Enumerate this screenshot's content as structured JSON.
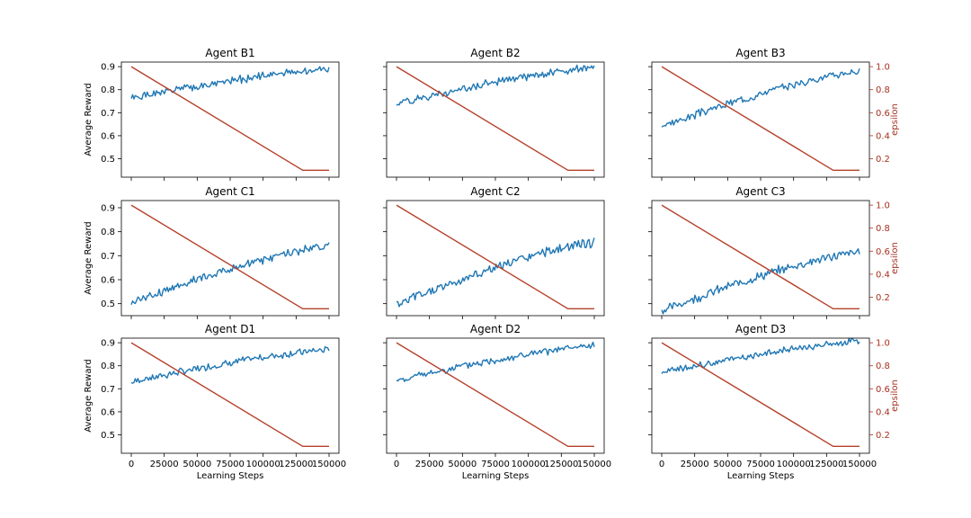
{
  "figure": {
    "background": "#ffffff"
  },
  "colors": {
    "reward": "#1f77b4",
    "epsilon": "#b5412a",
    "epsilon_axis": "#a5311f",
    "axis": "#000000"
  },
  "labels": {
    "xlabel": "Learning Steps",
    "ylabel_left": "Average Reward",
    "ylabel_right": "epsilon"
  },
  "chart_data": [
    {
      "type": "line",
      "title": "Agent B1",
      "row": 0,
      "col": 0,
      "xlim": [
        -7500,
        157500
      ],
      "ylim": [
        0.42,
        0.92
      ],
      "y2lim": [
        0.04,
        1.04
      ],
      "xticks": [
        0,
        25000,
        50000,
        75000,
        100000,
        125000,
        150000
      ],
      "yticks": [
        0.5,
        0.6,
        0.7,
        0.8,
        0.9
      ],
      "y2ticks": [
        0.2,
        0.4,
        0.6,
        0.8,
        1.0
      ],
      "yticklabels": [
        "0.5",
        "0.6",
        "0.7",
        "0.8",
        "0.9"
      ],
      "y2ticklabels": [
        "0.2",
        "0.4",
        "0.6",
        "0.8",
        "1.0"
      ],
      "xticklabels": [
        "0",
        "25000",
        "50000",
        "75000",
        "100000",
        "125000",
        "150000"
      ],
      "reward_start": 0.762,
      "reward_end": 0.89,
      "reward_noise": 0.013,
      "reward_seed": 1,
      "epsilon": {
        "x": [
          0,
          130000,
          150000
        ],
        "y": [
          1.0,
          0.1,
          0.1
        ]
      },
      "show_xticklabels": false,
      "show_yticklabels": true,
      "show_y2ticklabels": false,
      "show_xlabel": false,
      "show_ylabel": true,
      "show_y2label": false
    },
    {
      "type": "line",
      "title": "Agent B2",
      "row": 0,
      "col": 1,
      "xlim": [
        -7500,
        157500
      ],
      "ylim": [
        0.42,
        0.92
      ],
      "y2lim": [
        0.04,
        1.04
      ],
      "xticks": [
        0,
        25000,
        50000,
        75000,
        100000,
        125000,
        150000
      ],
      "yticks": [
        0.5,
        0.6,
        0.7,
        0.8,
        0.9
      ],
      "y2ticks": [
        0.2,
        0.4,
        0.6,
        0.8,
        1.0
      ],
      "yticklabels": [
        "0.5",
        "0.6",
        "0.7",
        "0.8",
        "0.9"
      ],
      "y2ticklabels": [
        "0.2",
        "0.4",
        "0.6",
        "0.8",
        "1.0"
      ],
      "xticklabels": [
        "0",
        "25000",
        "50000",
        "75000",
        "100000",
        "125000",
        "150000"
      ],
      "reward_start": 0.74,
      "reward_end": 0.895,
      "reward_noise": 0.013,
      "reward_seed": 2,
      "epsilon": {
        "x": [
          0,
          130000,
          150000
        ],
        "y": [
          1.0,
          0.1,
          0.1
        ]
      },
      "show_xticklabels": false,
      "show_yticklabels": false,
      "show_y2ticklabels": false,
      "show_xlabel": false,
      "show_ylabel": false,
      "show_y2label": false
    },
    {
      "type": "line",
      "title": "Agent B3",
      "row": 0,
      "col": 2,
      "xlim": [
        -7500,
        157500
      ],
      "ylim": [
        0.42,
        0.92
      ],
      "y2lim": [
        0.04,
        1.04
      ],
      "xticks": [
        0,
        25000,
        50000,
        75000,
        100000,
        125000,
        150000
      ],
      "yticks": [
        0.5,
        0.6,
        0.7,
        0.8,
        0.9
      ],
      "y2ticks": [
        0.2,
        0.4,
        0.6,
        0.8,
        1.0
      ],
      "yticklabels": [
        "0.5",
        "0.6",
        "0.7",
        "0.8",
        "0.9"
      ],
      "y2ticklabels": [
        "0.2",
        "0.4",
        "0.6",
        "0.8",
        "1.0"
      ],
      "xticklabels": [
        "0",
        "25000",
        "50000",
        "75000",
        "100000",
        "125000",
        "150000"
      ],
      "reward_start": 0.64,
      "reward_end": 0.88,
      "reward_noise": 0.013,
      "reward_seed": 3,
      "epsilon": {
        "x": [
          0,
          130000,
          150000
        ],
        "y": [
          1.0,
          0.1,
          0.1
        ]
      },
      "show_xticklabels": false,
      "show_yticklabels": false,
      "show_y2ticklabels": true,
      "show_xlabel": false,
      "show_ylabel": false,
      "show_y2label": true
    },
    {
      "type": "line",
      "title": "Agent C1",
      "row": 1,
      "col": 0,
      "xlim": [
        -7500,
        157500
      ],
      "ylim": [
        0.45,
        0.93
      ],
      "y2lim": [
        0.04,
        1.04
      ],
      "xticks": [
        0,
        25000,
        50000,
        75000,
        100000,
        125000,
        150000
      ],
      "yticks": [
        0.5,
        0.6,
        0.7,
        0.8,
        0.9
      ],
      "y2ticks": [
        0.2,
        0.4,
        0.6,
        0.8,
        1.0
      ],
      "yticklabels": [
        "0.5",
        "0.6",
        "0.7",
        "0.8",
        "0.9"
      ],
      "y2ticklabels": [
        "0.2",
        "0.4",
        "0.6",
        "0.8",
        "1.0"
      ],
      "xticklabels": [
        "0",
        "25000",
        "50000",
        "75000",
        "100000",
        "125000",
        "150000"
      ],
      "reward_start": 0.505,
      "reward_end": 0.74,
      "reward_noise": 0.014,
      "reward_seed": 4,
      "epsilon": {
        "x": [
          0,
          130000,
          150000
        ],
        "y": [
          1.0,
          0.1,
          0.1
        ]
      },
      "show_xticklabels": false,
      "show_yticklabels": true,
      "show_y2ticklabels": false,
      "show_xlabel": false,
      "show_ylabel": true,
      "show_y2label": false
    },
    {
      "type": "line",
      "title": "Agent C2",
      "row": 1,
      "col": 1,
      "xlim": [
        -7500,
        157500
      ],
      "ylim": [
        0.45,
        0.93
      ],
      "y2lim": [
        0.04,
        1.04
      ],
      "xticks": [
        0,
        25000,
        50000,
        75000,
        100000,
        125000,
        150000
      ],
      "yticks": [
        0.5,
        0.6,
        0.7,
        0.8,
        0.9
      ],
      "y2ticks": [
        0.2,
        0.4,
        0.6,
        0.8,
        1.0
      ],
      "yticklabels": [
        "0.5",
        "0.6",
        "0.7",
        "0.8",
        "0.9"
      ],
      "y2ticklabels": [
        "0.2",
        "0.4",
        "0.6",
        "0.8",
        "1.0"
      ],
      "xticklabels": [
        "0",
        "25000",
        "50000",
        "75000",
        "100000",
        "125000",
        "150000"
      ],
      "reward_start": 0.495,
      "reward_end": 0.755,
      "reward_noise": 0.016,
      "reward_seed": 5,
      "epsilon": {
        "x": [
          0,
          130000,
          150000
        ],
        "y": [
          1.0,
          0.1,
          0.1
        ]
      },
      "show_xticklabels": false,
      "show_yticklabels": false,
      "show_y2ticklabels": false,
      "show_xlabel": false,
      "show_ylabel": false,
      "show_y2label": false
    },
    {
      "type": "line",
      "title": "Agent C3",
      "row": 1,
      "col": 2,
      "xlim": [
        -7500,
        157500
      ],
      "ylim": [
        0.45,
        0.93
      ],
      "y2lim": [
        0.04,
        1.04
      ],
      "xticks": [
        0,
        25000,
        50000,
        75000,
        100000,
        125000,
        150000
      ],
      "yticks": [
        0.5,
        0.6,
        0.7,
        0.8,
        0.9
      ],
      "y2ticks": [
        0.2,
        0.4,
        0.6,
        0.8,
        1.0
      ],
      "yticklabels": [
        "0.5",
        "0.6",
        "0.7",
        "0.8",
        "0.9"
      ],
      "y2ticklabels": [
        "0.2",
        "0.4",
        "0.6",
        "0.8",
        "1.0"
      ],
      "xticklabels": [
        "0",
        "25000",
        "50000",
        "75000",
        "100000",
        "125000",
        "150000"
      ],
      "reward_start": 0.47,
      "reward_end": 0.715,
      "reward_noise": 0.015,
      "reward_seed": 6,
      "epsilon": {
        "x": [
          0,
          130000,
          150000
        ],
        "y": [
          1.0,
          0.1,
          0.1
        ]
      },
      "show_xticklabels": false,
      "show_yticklabels": false,
      "show_y2ticklabels": true,
      "show_xlabel": false,
      "show_ylabel": false,
      "show_y2label": true
    },
    {
      "type": "line",
      "title": "Agent D1",
      "row": 2,
      "col": 0,
      "xlim": [
        -7500,
        157500
      ],
      "ylim": [
        0.42,
        0.92
      ],
      "y2lim": [
        0.04,
        1.04
      ],
      "xticks": [
        0,
        25000,
        50000,
        75000,
        100000,
        125000,
        150000
      ],
      "yticks": [
        0.5,
        0.6,
        0.7,
        0.8,
        0.9
      ],
      "y2ticks": [
        0.2,
        0.4,
        0.6,
        0.8,
        1.0
      ],
      "yticklabels": [
        "0.5",
        "0.6",
        "0.7",
        "0.8",
        "0.9"
      ],
      "y2ticklabels": [
        "0.2",
        "0.4",
        "0.6",
        "0.8",
        "1.0"
      ],
      "xticklabels": [
        "0",
        "25000",
        "50000",
        "75000",
        "100000",
        "125000",
        "150000"
      ],
      "reward_start": 0.73,
      "reward_end": 0.87,
      "reward_noise": 0.012,
      "reward_seed": 7,
      "epsilon": {
        "x": [
          0,
          130000,
          150000
        ],
        "y": [
          1.0,
          0.1,
          0.1
        ]
      },
      "show_xticklabels": true,
      "show_yticklabels": true,
      "show_y2ticklabels": false,
      "show_xlabel": true,
      "show_ylabel": true,
      "show_y2label": false
    },
    {
      "type": "line",
      "title": "Agent D2",
      "row": 2,
      "col": 1,
      "xlim": [
        -7500,
        157500
      ],
      "ylim": [
        0.42,
        0.92
      ],
      "y2lim": [
        0.04,
        1.04
      ],
      "xticks": [
        0,
        25000,
        50000,
        75000,
        100000,
        125000,
        150000
      ],
      "yticks": [
        0.5,
        0.6,
        0.7,
        0.8,
        0.9
      ],
      "y2ticks": [
        0.2,
        0.4,
        0.6,
        0.8,
        1.0
      ],
      "yticklabels": [
        "0.5",
        "0.6",
        "0.7",
        "0.8",
        "0.9"
      ],
      "y2ticklabels": [
        "0.2",
        "0.4",
        "0.6",
        "0.8",
        "1.0"
      ],
      "xticklabels": [
        "0",
        "25000",
        "50000",
        "75000",
        "100000",
        "125000",
        "150000"
      ],
      "reward_start": 0.735,
      "reward_end": 0.885,
      "reward_noise": 0.012,
      "reward_seed": 8,
      "epsilon": {
        "x": [
          0,
          130000,
          150000
        ],
        "y": [
          1.0,
          0.1,
          0.1
        ]
      },
      "show_xticklabels": true,
      "show_yticklabels": false,
      "show_y2ticklabels": false,
      "show_xlabel": true,
      "show_ylabel": false,
      "show_y2label": false
    },
    {
      "type": "line",
      "title": "Agent D3",
      "row": 2,
      "col": 2,
      "xlim": [
        -7500,
        157500
      ],
      "ylim": [
        0.42,
        0.92
      ],
      "y2lim": [
        0.04,
        1.04
      ],
      "xticks": [
        0,
        25000,
        50000,
        75000,
        100000,
        125000,
        150000
      ],
      "yticks": [
        0.5,
        0.6,
        0.7,
        0.8,
        0.9
      ],
      "y2ticks": [
        0.2,
        0.4,
        0.6,
        0.8,
        1.0
      ],
      "yticklabels": [
        "0.5",
        "0.6",
        "0.7",
        "0.8",
        "0.9"
      ],
      "y2ticklabels": [
        "0.2",
        "0.4",
        "0.6",
        "0.8",
        "1.0"
      ],
      "xticklabels": [
        "0",
        "25000",
        "50000",
        "75000",
        "100000",
        "125000",
        "150000"
      ],
      "reward_start": 0.77,
      "reward_end": 0.905,
      "reward_noise": 0.012,
      "reward_seed": 9,
      "epsilon": {
        "x": [
          0,
          130000,
          150000
        ],
        "y": [
          1.0,
          0.1,
          0.1
        ]
      },
      "show_xticklabels": true,
      "show_yticklabels": false,
      "show_y2ticklabels": true,
      "show_xlabel": true,
      "show_ylabel": false,
      "show_y2label": true
    }
  ]
}
